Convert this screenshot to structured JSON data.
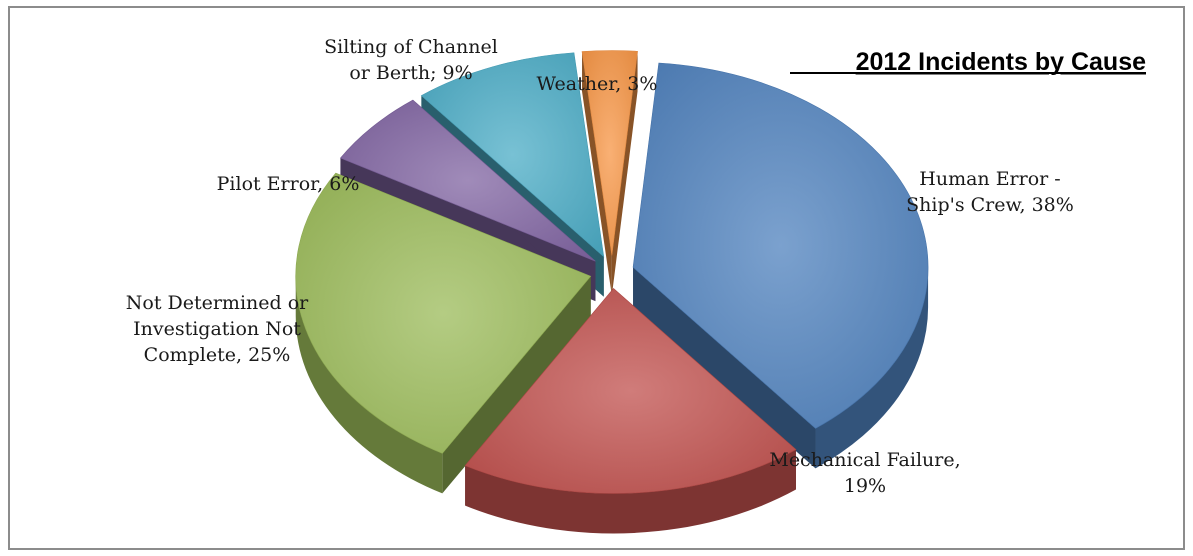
{
  "chart_data": {
    "type": "pie",
    "title": "2012 Incidents by Cause",
    "slices": [
      {
        "name": "Human Error - Ship's Crew",
        "value": 38,
        "label_lines": [
          "Human Error -",
          "Ship's Crew, 38%"
        ],
        "color": "#4f81bd"
      },
      {
        "name": "Mechanical Failure",
        "value": 19,
        "label_lines": [
          "Mechanical Failure,",
          "19%"
        ],
        "color": "#c0504d"
      },
      {
        "name": "Not Determined or Investigation Not Complete",
        "value": 25,
        "label_lines": [
          "Not Determined or",
          "Investigation Not",
          "Complete, 25%"
        ],
        "color": "#9bbb59"
      },
      {
        "name": "Pilot Error",
        "value": 6,
        "label_lines": [
          "Pilot Error, 6%"
        ],
        "color": "#8064a2"
      },
      {
        "name": "Silting of Channel or Berth",
        "value": 9,
        "label_lines": [
          "Silting of Channel",
          "or Berth; 9%"
        ],
        "color": "#4bacc6"
      },
      {
        "name": "Weather",
        "value": 3,
        "label_lines": [
          "Weather, 3%"
        ],
        "color": "#f79646"
      }
    ],
    "legend": "none",
    "exploded": true,
    "style": "3d"
  }
}
